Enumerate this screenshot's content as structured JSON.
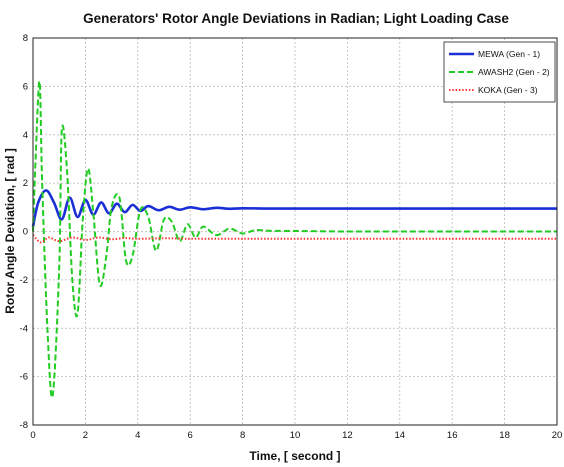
{
  "chart_data": {
    "type": "line",
    "title": "Generators' Rotor Angle Deviations in Radian; Light Loading Case",
    "xlabel": "Time, [ second ]",
    "ylabel": "Rotor Angle Deviation, [ rad ]",
    "xlim": [
      0,
      20
    ],
    "ylim": [
      -8,
      8
    ],
    "xticks": [
      0,
      2,
      4,
      6,
      8,
      10,
      12,
      14,
      16,
      18,
      20
    ],
    "yticks": [
      -8,
      -6,
      -4,
      -2,
      0,
      2,
      4,
      6,
      8
    ],
    "grid": true,
    "legend_position": "top-right",
    "series": [
      {
        "name": "MEWA (Gen - 1)",
        "color": "#1a2fd6",
        "style": "solid",
        "x": [
          0,
          0.2,
          0.5,
          0.8,
          1.1,
          1.4,
          1.7,
          2.0,
          2.3,
          2.6,
          2.9,
          3.2,
          3.5,
          3.8,
          4.1,
          4.4,
          4.8,
          5.2,
          5.6,
          6.0,
          6.5,
          7.0,
          7.5,
          8.0,
          9.0,
          10.0,
          12.0,
          14.0,
          16.0,
          18.0,
          20.0
        ],
        "y": [
          0.2,
          1.2,
          1.7,
          1.2,
          0.5,
          1.4,
          0.6,
          1.3,
          0.7,
          1.2,
          0.75,
          1.15,
          0.8,
          1.1,
          0.85,
          1.05,
          0.88,
          1.02,
          0.9,
          1.0,
          0.92,
          0.98,
          0.94,
          0.96,
          0.95,
          0.95,
          0.95,
          0.95,
          0.95,
          0.95,
          0.95
        ]
      },
      {
        "name": "AWASH2 (Gen - 2)",
        "color": "#22cc22",
        "style": "dashed",
        "x": [
          0,
          0.1,
          0.25,
          0.35,
          0.55,
          0.75,
          1.0,
          1.1,
          1.3,
          1.5,
          1.7,
          1.9,
          2.1,
          2.3,
          2.55,
          2.8,
          3.0,
          3.3,
          3.55,
          3.8,
          4.1,
          4.4,
          4.7,
          5.0,
          5.3,
          5.6,
          5.9,
          6.2,
          6.5,
          7.0,
          7.5,
          8.0,
          8.5,
          9.0,
          10.0,
          12.0,
          14.0,
          16.0,
          18.0,
          20.0
        ],
        "y": [
          0,
          3.0,
          6.2,
          2.0,
          -4.0,
          -6.8,
          -1.5,
          4.2,
          2.5,
          -2.0,
          -3.4,
          0.5,
          2.6,
          0.8,
          -2.2,
          -1.0,
          1.0,
          1.4,
          -1.2,
          -1.0,
          0.9,
          0.6,
          -0.8,
          0.5,
          0.4,
          -0.4,
          0.3,
          -0.25,
          0.2,
          -0.15,
          0.12,
          -0.08,
          0.06,
          0.03,
          0.02,
          0.0,
          0.0,
          0.0,
          0.0,
          0.0
        ]
      },
      {
        "name": "KOKA (Gen - 3)",
        "color": "#ff3333",
        "style": "dotted",
        "x": [
          0,
          0.3,
          0.6,
          1.0,
          1.5,
          2.0,
          2.5,
          3.0,
          3.5,
          4.0,
          5.0,
          6.0,
          8.0,
          10.0,
          12.0,
          14.0,
          16.0,
          18.0,
          20.0
        ],
        "y": [
          -0.15,
          -0.45,
          -0.25,
          -0.4,
          -0.25,
          -0.35,
          -0.25,
          -0.32,
          -0.27,
          -0.3,
          -0.28,
          -0.3,
          -0.3,
          -0.3,
          -0.3,
          -0.3,
          -0.3,
          -0.3,
          -0.3
        ]
      }
    ]
  }
}
